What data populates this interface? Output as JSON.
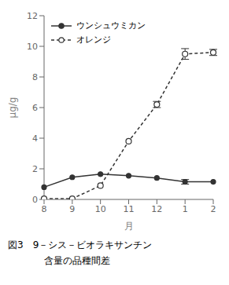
{
  "chart_data": {
    "type": "line",
    "xlabel": "月",
    "ylabel": "μg/g",
    "categories": [
      "8",
      "9",
      "10",
      "11",
      "12",
      "1",
      "2"
    ],
    "series": [
      {
        "name": "ウンシュウミカン",
        "color": "#333333",
        "marker": "filled_circle",
        "line_style": "solid",
        "values": [
          0.8,
          1.45,
          1.65,
          1.55,
          1.4,
          1.15,
          1.15
        ],
        "errors": [
          0.0,
          0.0,
          0.0,
          0.0,
          0.0,
          0.15,
          0.0
        ]
      },
      {
        "name": "オレンジ",
        "color": "#333333",
        "marker": "open_circle",
        "line_style": "dashed",
        "values": [
          0.05,
          0.05,
          0.9,
          3.8,
          6.2,
          9.5,
          9.6
        ],
        "errors": [
          0.0,
          0.0,
          0.0,
          0.0,
          0.2,
          0.35,
          0.2
        ]
      }
    ],
    "ylim": [
      0,
      12
    ],
    "yticks": [
      0,
      2,
      4,
      6,
      8,
      10,
      12
    ],
    "grid": false,
    "legend": "upper left",
    "annotations": [
      "図3　9－シス－ビオラキサンチン",
      "含量の品種間差"
    ]
  }
}
